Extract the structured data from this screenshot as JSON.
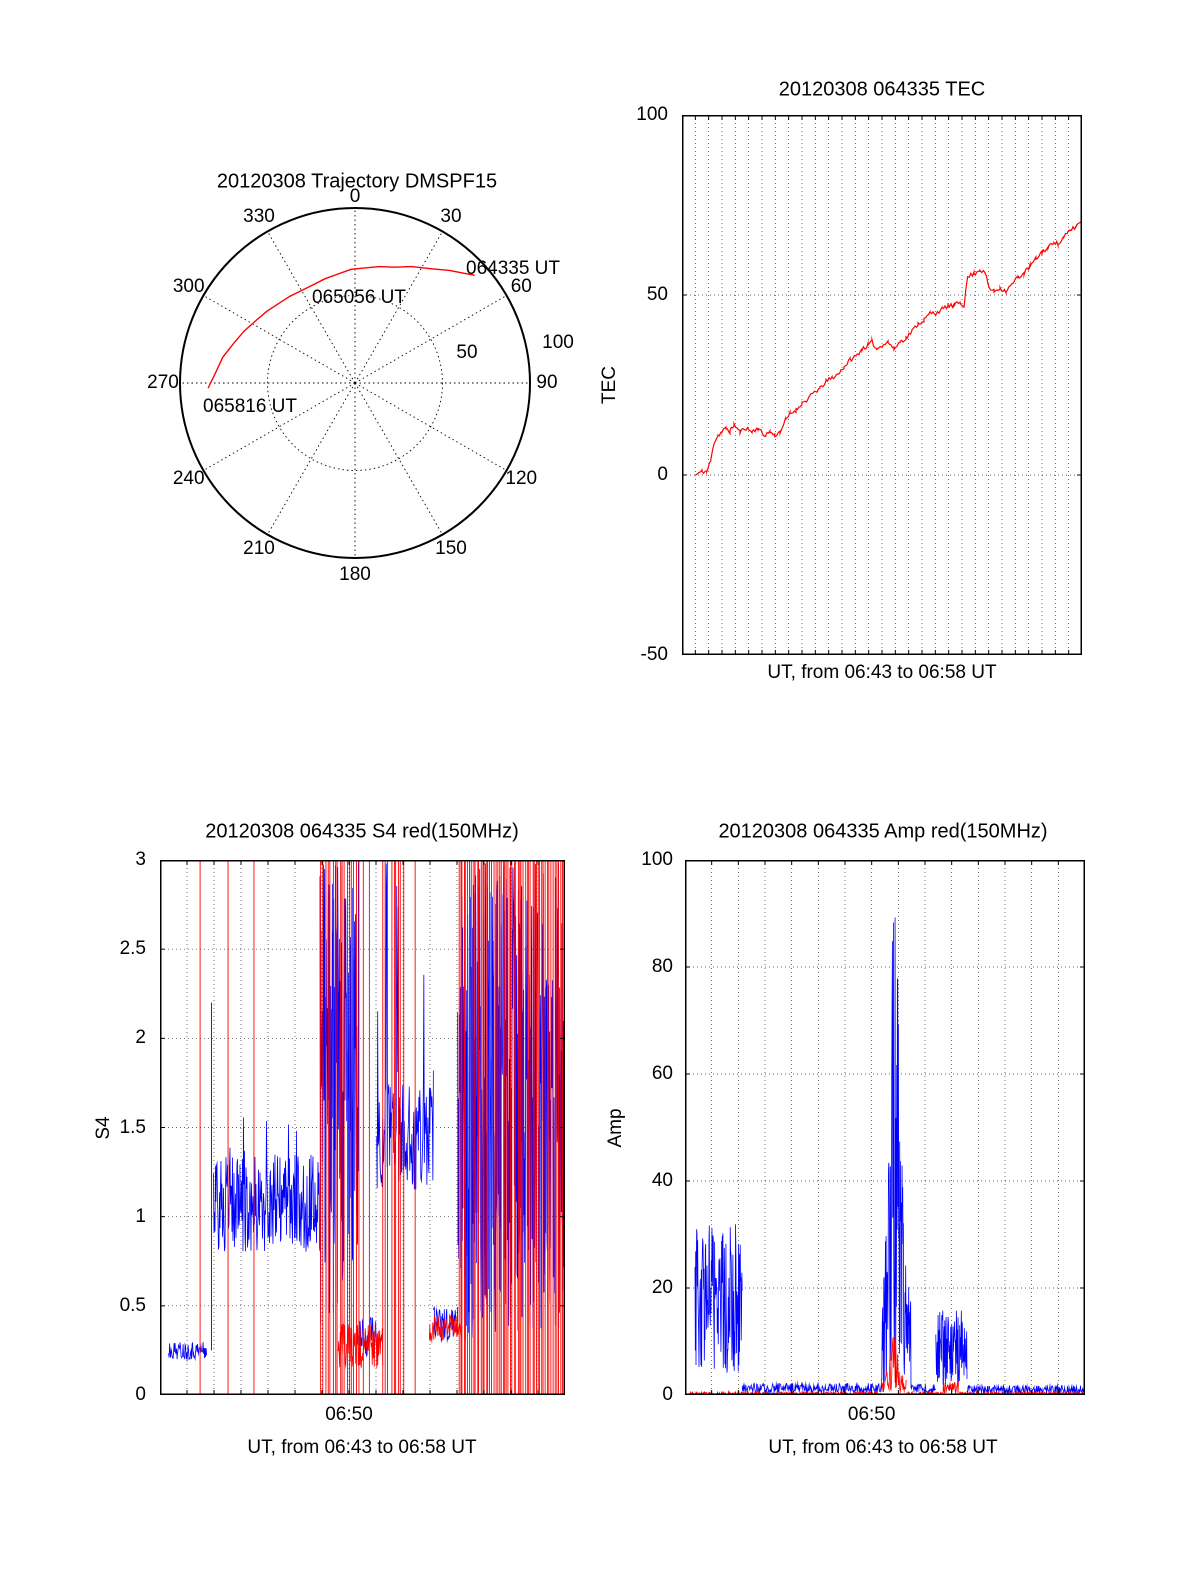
{
  "noise_seed": 11,
  "colors": {
    "red": "#ff0000",
    "blue": "#0000ff",
    "frame": "#000000",
    "background": "#ffffff"
  },
  "chart_data": {
    "trajectory": {
      "type": "line",
      "projection": "polar",
      "title": "20120308 Trajectory DMSPF15",
      "az_labels": [
        "0",
        "30",
        "60",
        "90",
        "120",
        "150",
        "180",
        "210",
        "240",
        "270",
        "300",
        "330"
      ],
      "radial_labels": [
        "50",
        "100"
      ],
      "annotations": [
        {
          "text": "064335 UT"
        },
        {
          "text": "065056 UT"
        },
        {
          "text": "065816 UT"
        }
      ],
      "line_color": "#ff0000",
      "points_az_r": [
        [
          48,
          92
        ],
        [
          40,
          84
        ],
        [
          33,
          78
        ],
        [
          26,
          74
        ],
        [
          19,
          70
        ],
        [
          12,
          68
        ],
        [
          5,
          66
        ],
        [
          -2,
          65
        ],
        [
          -9,
          63
        ],
        [
          -16,
          62
        ],
        [
          -23,
          61
        ],
        [
          -30,
          61
        ],
        [
          -37,
          62
        ],
        [
          -44,
          63
        ],
        [
          -51,
          65
        ],
        [
          -58,
          67
        ],
        [
          -65,
          70
        ],
        [
          -72,
          73
        ],
        [
          -79,
          77
        ],
        [
          -86,
          80
        ],
        [
          -92,
          84
        ]
      ]
    },
    "tec": {
      "type": "line",
      "title": "20120308 064335 TEC",
      "ylabel": "TEC",
      "xlabel": "UT, from 06:43 to 06:58 UT",
      "ylim": [
        -50,
        100
      ],
      "yticks": [
        {
          "v": 100,
          "label": "100"
        },
        {
          "v": 50,
          "label": "50"
        },
        {
          "v": 0,
          "label": "0"
        },
        {
          "v": -50,
          "label": "-50"
        }
      ],
      "xticks": [],
      "x_intervals": 30,
      "series_color": "#ff0000",
      "jitter": 0.6,
      "points": [
        [
          0.034,
          0
        ],
        [
          0.05,
          1
        ],
        [
          0.062,
          1
        ],
        [
          0.072,
          4
        ],
        [
          0.08,
          9
        ],
        [
          0.09,
          11
        ],
        [
          0.1,
          12
        ],
        [
          0.11,
          13
        ],
        [
          0.12,
          12
        ],
        [
          0.13,
          14
        ],
        [
          0.145,
          12
        ],
        [
          0.16,
          13
        ],
        [
          0.175,
          12
        ],
        [
          0.19,
          13
        ],
        [
          0.205,
          11
        ],
        [
          0.22,
          12
        ],
        [
          0.232,
          11
        ],
        [
          0.245,
          12
        ],
        [
          0.258,
          15
        ],
        [
          0.27,
          17
        ],
        [
          0.285,
          18
        ],
        [
          0.3,
          20
        ],
        [
          0.315,
          21
        ],
        [
          0.33,
          23
        ],
        [
          0.345,
          24
        ],
        [
          0.36,
          26
        ],
        [
          0.375,
          27
        ],
        [
          0.39,
          28
        ],
        [
          0.405,
          30
        ],
        [
          0.42,
          32
        ],
        [
          0.435,
          33
        ],
        [
          0.45,
          35
        ],
        [
          0.465,
          36
        ],
        [
          0.475,
          37
        ],
        [
          0.487,
          35
        ],
        [
          0.5,
          36
        ],
        [
          0.515,
          37
        ],
        [
          0.53,
          35
        ],
        [
          0.545,
          37
        ],
        [
          0.56,
          38
        ],
        [
          0.575,
          40
        ],
        [
          0.59,
          42
        ],
        [
          0.605,
          43
        ],
        [
          0.62,
          45
        ],
        [
          0.635,
          45
        ],
        [
          0.65,
          46
        ],
        [
          0.665,
          47
        ],
        [
          0.68,
          47
        ],
        [
          0.695,
          48
        ],
        [
          0.705,
          47
        ],
        [
          0.714,
          55
        ],
        [
          0.73,
          56
        ],
        [
          0.745,
          57
        ],
        [
          0.758,
          56
        ],
        [
          0.768,
          52
        ],
        [
          0.78,
          51
        ],
        [
          0.795,
          52
        ],
        [
          0.81,
          51
        ],
        [
          0.825,
          53
        ],
        [
          0.84,
          55
        ],
        [
          0.855,
          56
        ],
        [
          0.87,
          58
        ],
        [
          0.885,
          60
        ],
        [
          0.9,
          62
        ],
        [
          0.915,
          63
        ],
        [
          0.93,
          65
        ],
        [
          0.94,
          64
        ],
        [
          0.955,
          66
        ],
        [
          0.97,
          68
        ],
        [
          0.985,
          69
        ],
        [
          1.0,
          71
        ]
      ]
    },
    "s4": {
      "type": "line",
      "title": "20120308 064335 S4 red(150MHz)",
      "ylabel": "S4",
      "xlabel": "UT, from 06:43 to 06:58 UT",
      "ylim": [
        0,
        3
      ],
      "yticks": [
        {
          "v": 3,
          "label": "3"
        },
        {
          "v": 2.5,
          "label": "2.5"
        },
        {
          "v": 2,
          "label": "2"
        },
        {
          "v": 1.5,
          "label": "1.5"
        },
        {
          "v": 1,
          "label": "1"
        },
        {
          "v": 0.5,
          "label": "0.5"
        },
        {
          "v": 0,
          "label": "0"
        }
      ],
      "xticks": [
        {
          "t": 0.46667,
          "label": "06:50"
        }
      ],
      "x_intervals": 15,
      "blue": {
        "color": "#0000ff",
        "segments": [
          {
            "t0": 0.02,
            "t1": 0.115,
            "lo": 0.2,
            "hi": 0.3
          },
          {
            "t0": 0.132,
            "t1": 0.395,
            "lo": 0.8,
            "hi": 1.35,
            "spike_p": 0.01,
            "spike_hi": 1.6
          },
          {
            "t0": 0.395,
            "t1": 0.49,
            "lo": 0.4,
            "hi": 3.0,
            "d": 3
          },
          {
            "t0": 0.49,
            "t1": 0.535,
            "lo": 0.2,
            "hi": 0.45
          },
          {
            "t0": 0.535,
            "t1": 0.675,
            "lo": 1.15,
            "hi": 1.75,
            "spike_p": 0.08,
            "spike_hi": 3.0
          },
          {
            "t0": 0.675,
            "t1": 0.735,
            "lo": 0.3,
            "hi": 0.5
          },
          {
            "t0": 0.735,
            "t1": 1.0,
            "lo": 0.3,
            "hi": 3.0,
            "d": 3
          }
        ],
        "vlines": [
          {
            "t": 0.127,
            "v": 2.2
          }
        ]
      },
      "red": {
        "color": "#ff0000",
        "base_segments": [
          {
            "t0": 0.44,
            "t1": 0.55,
            "lo": 0.15,
            "hi": 0.4
          },
          {
            "t0": 0.665,
            "t1": 0.745,
            "lo": 0.3,
            "hi": 0.45
          }
        ],
        "full_spike_singles": [
          0.099,
          0.168,
          0.232,
          0.502,
          0.517,
          0.63
        ],
        "full_spike_ranges": [
          [
            0.395,
            0.494,
            17
          ],
          [
            0.548,
            0.605,
            9
          ],
          [
            0.735,
            1.0,
            58
          ]
        ]
      }
    },
    "amp": {
      "type": "line",
      "title": "20120308 064335 Amp red(150MHz)",
      "ylabel": "Amp",
      "xlabel": "UT, from 06:43 to 06:58 UT",
      "ylim": [
        0,
        100
      ],
      "yticks": [
        {
          "v": 100,
          "label": "100"
        },
        {
          "v": 80,
          "label": "80"
        },
        {
          "v": 60,
          "label": "60"
        },
        {
          "v": 40,
          "label": "40"
        },
        {
          "v": 20,
          "label": "20"
        },
        {
          "v": 0,
          "label": "0"
        }
      ],
      "xticks": [
        {
          "t": 0.46667,
          "label": "06:50"
        }
      ],
      "x_intervals": 15,
      "blue": {
        "color": "#0000ff",
        "segments": [
          {
            "t0": 0.025,
            "t1": 0.143,
            "lo": 4,
            "hi": 32,
            "d": 3
          },
          {
            "t0": 0.143,
            "t1": 0.492,
            "lo": 0.3,
            "hi": 2.2
          },
          {
            "t0": 0.492,
            "t1": 0.565,
            "lo": 1,
            "hi": 20,
            "peak_t": 0.524,
            "peak": 94,
            "sigma": 0.018,
            "d": 3
          },
          {
            "t0": 0.565,
            "t1": 0.627,
            "lo": 0.2,
            "hi": 2.0
          },
          {
            "t0": 0.627,
            "t1": 0.705,
            "lo": 1.5,
            "hi": 16,
            "d": 3
          },
          {
            "t0": 0.705,
            "t1": 1.0,
            "lo": 0.2,
            "hi": 1.8
          }
        ]
      },
      "red": {
        "color": "#ff0000",
        "segments": [
          {
            "t0": 0.01,
            "t1": 0.49,
            "lo": 0,
            "hi": 0.6
          },
          {
            "t0": 0.49,
            "t1": 0.553,
            "lo": 0.2,
            "hi": 3,
            "peak_t": 0.522,
            "peak": 12,
            "sigma": 0.014
          },
          {
            "t0": 0.553,
            "t1": 0.645,
            "lo": 0,
            "hi": 0.6
          },
          {
            "t0": 0.645,
            "t1": 0.685,
            "lo": 0.2,
            "hi": 2.5
          },
          {
            "t0": 0.685,
            "t1": 1.0,
            "lo": 0,
            "hi": 0.6
          }
        ]
      }
    }
  }
}
